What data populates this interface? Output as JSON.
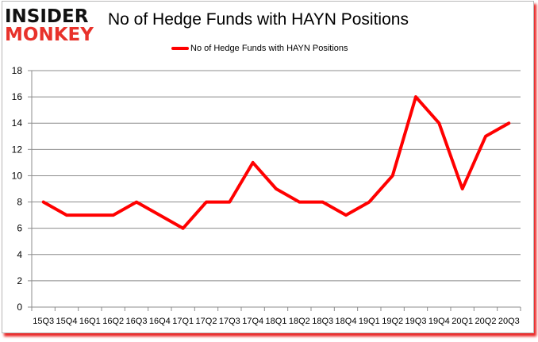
{
  "logo": {
    "line1": "INSIDER",
    "line2": "MONKEY"
  },
  "chart_data": {
    "type": "line",
    "title": "No of Hedge Funds with HAYN Positions",
    "xlabel": "",
    "ylabel": "",
    "categories": [
      "15Q3",
      "15Q4",
      "16Q1",
      "16Q2",
      "16Q3",
      "16Q4",
      "17Q1",
      "17Q2",
      "17Q3",
      "17Q4",
      "18Q1",
      "18Q2",
      "18Q3",
      "18Q4",
      "19Q1",
      "19Q2",
      "19Q3",
      "19Q4",
      "20Q1",
      "20Q2",
      "20Q3"
    ],
    "series": [
      {
        "name": "No of Hedge Funds with HAYN Positions",
        "color": "#ff0000",
        "values": [
          8,
          7,
          7,
          7,
          8,
          7,
          6,
          8,
          8,
          11,
          9,
          8,
          8,
          7,
          8,
          10,
          16,
          14,
          9,
          13,
          14
        ]
      }
    ],
    "ylim": [
      0,
      18
    ],
    "yticks": [
      0,
      2,
      4,
      6,
      8,
      10,
      12,
      14,
      16,
      18
    ],
    "grid": true,
    "legend_position": "top"
  }
}
